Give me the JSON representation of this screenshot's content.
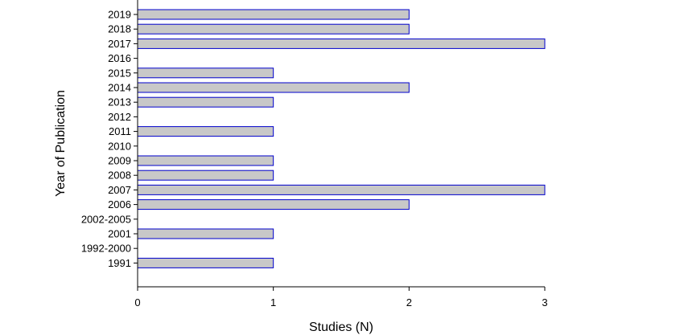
{
  "chart_data": {
    "type": "bar",
    "orientation": "horizontal",
    "title": "",
    "xlabel": "Studies (N)",
    "ylabel": "Year of Publication",
    "categories": [
      "2019",
      "2018",
      "2017",
      "2016",
      "2015",
      "2014",
      "2013",
      "2012",
      "2011",
      "2010",
      "2009",
      "2008",
      "2007",
      "2006",
      "2002-2005",
      "2001",
      "1992-2000",
      "1991"
    ],
    "values": [
      2,
      2,
      3,
      0,
      1,
      2,
      1,
      0,
      1,
      0,
      1,
      1,
      3,
      2,
      0,
      1,
      0,
      1
    ],
    "xlim": [
      0,
      3
    ],
    "xticks": [
      0,
      1,
      2,
      3
    ],
    "grid": false,
    "legend": "none",
    "colors": {
      "bar_fill": "#c8c8c8",
      "bar_edge": "#0000cc"
    }
  }
}
